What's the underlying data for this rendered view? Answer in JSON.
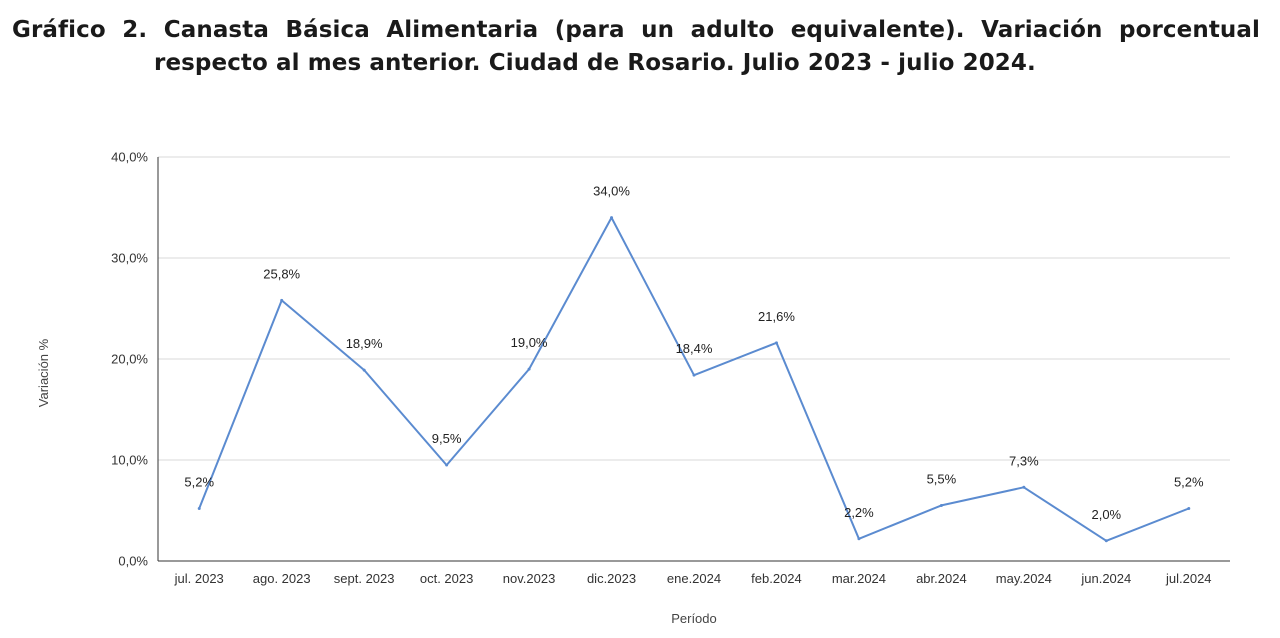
{
  "chart_data": {
    "type": "line",
    "title": "Gráfico 2. Canasta Básica Alimentaria (para un adulto equivalente). Variación porcentual respecto al mes anterior. Ciudad de Rosario. Julio 2023 - julio 2024.",
    "xlabel": "Período",
    "ylabel": "Variación %",
    "ylim": [
      0,
      40
    ],
    "y_ticks": [
      "0,0%",
      "10,0%",
      "20,0%",
      "30,0%",
      "40,0%"
    ],
    "grid": true,
    "legend": "none",
    "categories": [
      "jul. 2023",
      "ago. 2023",
      "sept. 2023",
      "oct. 2023",
      "nov.2023",
      "dic.2023",
      "ene.2024",
      "feb.2024",
      "mar.2024",
      "abr.2024",
      "may.2024",
      "jun.2024",
      "jul.2024"
    ],
    "series": [
      {
        "values": [
          5.2,
          25.8,
          18.9,
          9.5,
          19.0,
          34.0,
          18.4,
          21.6,
          2.2,
          5.5,
          7.3,
          2.0,
          5.2
        ],
        "labels": [
          "5,2%",
          "25,8%",
          "18,9%",
          "9,5%",
          "19,0%",
          "34,0%",
          "18,4%",
          "21,6%",
          "2,2%",
          "5,5%",
          "7,3%",
          "2,0%",
          "5,2%"
        ],
        "color": "#5b8bd0"
      }
    ],
    "gridline_color": "#d9d9d9",
    "axis_color": "#333333"
  }
}
